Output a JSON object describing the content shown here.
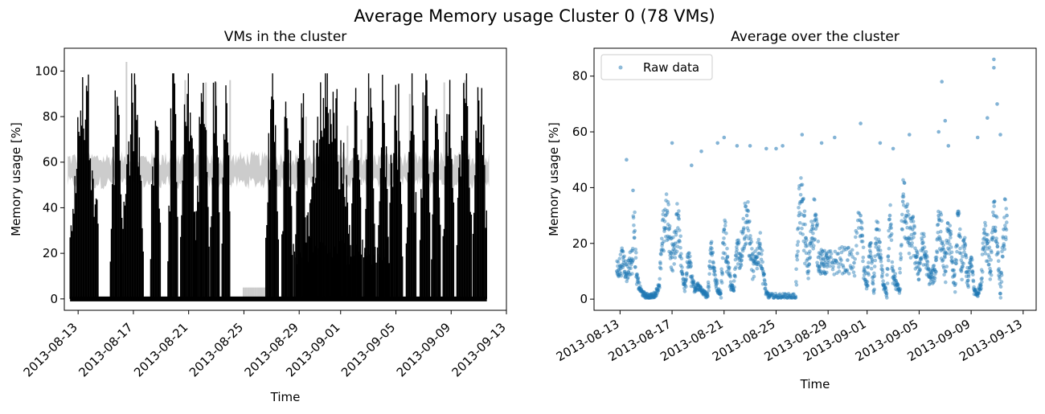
{
  "figure": {
    "title": "Average Memory usage Cluster 0 (78 VMs)"
  },
  "chart_data": [
    {
      "type": "line",
      "title": "VMs in the cluster",
      "xlabel": "Time",
      "ylabel": "Memory usage [%]",
      "x_ticks": [
        "2013-08-13",
        "2013-08-17",
        "2013-08-21",
        "2013-08-25",
        "2013-08-29",
        "2013-09-01",
        "2013-09-05",
        "2013-09-09",
        "2013-09-13"
      ],
      "y_ticks": [
        0,
        20,
        40,
        60,
        80,
        100
      ],
      "xlim": [
        "2013-08-12",
        "2013-09-13"
      ],
      "ylim": [
        -5,
        110
      ],
      "x_tick_rotation": 45,
      "series_colors": {
        "individual_vms": "#000000",
        "background_vms": "#cccccc"
      },
      "black_busy_periods": [
        [
          "2013-08-12T10",
          "2013-08-14T12"
        ],
        [
          "2013-08-15T08",
          "2013-08-16T06"
        ],
        [
          "2013-08-16T06",
          "2013-08-17T18"
        ],
        [
          "2013-08-18T06",
          "2013-08-19T00"
        ],
        [
          "2013-08-19T12",
          "2013-08-20T06"
        ],
        [
          "2013-08-20T10",
          "2013-08-21T12"
        ],
        [
          "2013-08-21T12",
          "2013-08-22T12"
        ],
        [
          "2013-08-22T14",
          "2013-08-23T06"
        ],
        [
          "2013-08-23T10",
          "2013-08-24T00"
        ],
        [
          "2013-08-26T14",
          "2013-08-27T12"
        ],
        [
          "2013-08-27T18",
          "2013-08-28T12"
        ],
        [
          "2013-08-28T18",
          "2013-08-29T12"
        ],
        [
          "2013-08-29T12",
          "2013-09-01T18"
        ],
        [
          "2013-09-01T18",
          "2013-09-02T12"
        ],
        [
          "2013-09-02T18",
          "2013-09-03T12"
        ],
        [
          "2013-09-03T18",
          "2013-09-04T12"
        ],
        [
          "2013-09-04T12",
          "2013-09-05T12"
        ],
        [
          "2013-09-05T18",
          "2013-09-06T12"
        ],
        [
          "2013-09-06T18",
          "2013-09-07T12"
        ],
        [
          "2013-09-07T14",
          "2013-09-08T06"
        ],
        [
          "2013-09-08T10",
          "2013-09-09T06"
        ],
        [
          "2013-09-09T10",
          "2013-09-10T12"
        ],
        [
          "2013-09-10T14",
          "2013-09-11T14"
        ]
      ]
    },
    {
      "type": "scatter",
      "title": "Average over the cluster",
      "xlabel": "Time",
      "ylabel": "Memory usage [%]",
      "legend": {
        "entries": [
          "Raw data"
        ],
        "placement": "top-left"
      },
      "x_ticks": [
        "2013-08-13",
        "2013-08-17",
        "2013-08-21",
        "2013-08-25",
        "2013-08-29",
        "2013-09-01",
        "2013-09-05",
        "2013-09-09",
        "2013-09-13"
      ],
      "y_ticks": [
        0,
        20,
        40,
        60,
        80
      ],
      "xlim": [
        "2013-08-11",
        "2013-09-14"
      ],
      "ylim": [
        -4,
        90
      ],
      "x_tick_rotation": 30,
      "marker_color": "#1f77b4",
      "series": [
        {
          "name": "Raw data",
          "points": [
            [
              "2013-08-12T18",
              10
            ],
            [
              "2013-08-13T00",
              12
            ],
            [
              "2013-08-13T06",
              15
            ],
            [
              "2013-08-13T12",
              9
            ],
            [
              "2013-08-13T18",
              13
            ],
            [
              "2013-08-14T00",
              14
            ],
            [
              "2013-08-14T06",
              8
            ],
            [
              "2013-08-14T12",
              4
            ],
            [
              "2013-08-14T18",
              2
            ],
            [
              "2013-08-15T00",
              1
            ],
            [
              "2013-08-15T06",
              1
            ],
            [
              "2013-08-15T12",
              1
            ],
            [
              "2013-08-15T18",
              2
            ],
            [
              "2013-08-16T00",
              5
            ],
            [
              "2013-08-16T06",
              20
            ],
            [
              "2013-08-16T12",
              30
            ],
            [
              "2013-08-16T18",
              25
            ],
            [
              "2013-08-17T00",
              15
            ],
            [
              "2013-08-17T06",
              20
            ],
            [
              "2013-08-17T12",
              30
            ],
            [
              "2013-08-17T18",
              10
            ],
            [
              "2013-08-18T00",
              5
            ],
            [
              "2013-08-18T06",
              15
            ],
            [
              "2013-08-18T12",
              8
            ],
            [
              "2013-08-18T18",
              3
            ],
            [
              "2013-08-19T00",
              5
            ],
            [
              "2013-08-19T06",
              3
            ],
            [
              "2013-08-19T12",
              2
            ],
            [
              "2013-08-19T18",
              1
            ],
            [
              "2013-08-20T00",
              20
            ],
            [
              "2013-08-20T06",
              10
            ],
            [
              "2013-08-20T12",
              3
            ],
            [
              "2013-08-20T18",
              2
            ],
            [
              "2013-08-21T00",
              25
            ],
            [
              "2013-08-21T06",
              15
            ],
            [
              "2013-08-21T12",
              5
            ],
            [
              "2013-08-21T18",
              3
            ],
            [
              "2013-08-22T00",
              20
            ],
            [
              "2013-08-22T06",
              15
            ],
            [
              "2013-08-22T12",
              25
            ],
            [
              "2013-08-22T18",
              30
            ],
            [
              "2013-08-23T00",
              20
            ],
            [
              "2013-08-23T06",
              10
            ],
            [
              "2013-08-23T12",
              15
            ],
            [
              "2013-08-23T18",
              20
            ],
            [
              "2013-08-24T00",
              10
            ],
            [
              "2013-08-24T06",
              2
            ],
            [
              "2013-08-24T12",
              1
            ],
            [
              "2013-08-25T00",
              1
            ],
            [
              "2013-08-25T12",
              1
            ],
            [
              "2013-08-26T00",
              1
            ],
            [
              "2013-08-26T12",
              1
            ],
            [
              "2013-08-26T18",
              30
            ],
            [
              "2013-08-27T00",
              35
            ],
            [
              "2013-08-27T06",
              20
            ],
            [
              "2013-08-27T12",
              10
            ],
            [
              "2013-08-27T18",
              25
            ],
            [
              "2013-08-28T00",
              30
            ],
            [
              "2013-08-28T06",
              15
            ],
            [
              "2013-08-28T12",
              13
            ],
            [
              "2013-08-28T18",
              13
            ],
            [
              "2013-08-29T00",
              13
            ],
            [
              "2013-08-29T12",
              13
            ],
            [
              "2013-08-30T00",
              14
            ],
            [
              "2013-08-30T12",
              14
            ],
            [
              "2013-08-31T00",
              13
            ],
            [
              "2013-08-31T12",
              30
            ],
            [
              "2013-08-31T18",
              10
            ],
            [
              "2013-09-01T00",
              5
            ],
            [
              "2013-09-01T06",
              20
            ],
            [
              "2013-09-01T12",
              3
            ],
            [
              "2013-09-01T18",
              25
            ],
            [
              "2013-09-02T00",
              15
            ],
            [
              "2013-09-02T06",
              5
            ],
            [
              "2013-09-02T12",
              2
            ],
            [
              "2013-09-02T18",
              30
            ],
            [
              "2013-09-03T00",
              10
            ],
            [
              "2013-09-03T06",
              5
            ],
            [
              "2013-09-03T12",
              3
            ],
            [
              "2013-09-03T18",
              35
            ],
            [
              "2013-09-04T00",
              30
            ],
            [
              "2013-09-04T06",
              20
            ],
            [
              "2013-09-04T12",
              25
            ],
            [
              "2013-09-04T18",
              15
            ],
            [
              "2013-09-05T00",
              10
            ],
            [
              "2013-09-05T06",
              20
            ],
            [
              "2013-09-05T12",
              15
            ],
            [
              "2013-09-05T18",
              8
            ],
            [
              "2013-09-06T00",
              8
            ],
            [
              "2013-09-06T06",
              10
            ],
            [
              "2013-09-06T12",
              30
            ],
            [
              "2013-09-06T18",
              20
            ],
            [
              "2013-09-07T00",
              10
            ],
            [
              "2013-09-07T06",
              25
            ],
            [
              "2013-09-07T12",
              15
            ],
            [
              "2013-09-07T18",
              5
            ],
            [
              "2013-09-08T00",
              30
            ],
            [
              "2013-09-08T06",
              10
            ],
            [
              "2013-09-08T12",
              20
            ],
            [
              "2013-09-08T18",
              5
            ],
            [
              "2013-09-09T00",
              15
            ],
            [
              "2013-09-09T06",
              3
            ],
            [
              "2013-09-09T12",
              2
            ],
            [
              "2013-09-09T18",
              5
            ],
            [
              "2013-09-10T00",
              25
            ],
            [
              "2013-09-10T06",
              20
            ],
            [
              "2013-09-10T12",
              10
            ],
            [
              "2013-09-10T18",
              30
            ],
            [
              "2013-09-11T00",
              20
            ],
            [
              "2013-09-11T06",
              2
            ],
            [
              "2013-09-11T12",
              25
            ],
            [
              "2013-09-11T18",
              30
            ],
            [
              "2013-08-13T12",
              50
            ],
            [
              "2013-08-14T00",
              39
            ],
            [
              "2013-08-17T00",
              56
            ],
            [
              "2013-08-18T12",
              48
            ],
            [
              "2013-08-19T06",
              53
            ],
            [
              "2013-08-20T12",
              56
            ],
            [
              "2013-08-21T00",
              58
            ],
            [
              "2013-08-22T00",
              55
            ],
            [
              "2013-08-23T00",
              55
            ],
            [
              "2013-08-24T06",
              54
            ],
            [
              "2013-08-25T00",
              54
            ],
            [
              "2013-08-25T12",
              55
            ],
            [
              "2013-08-27T00",
              59
            ],
            [
              "2013-08-28T12",
              56
            ],
            [
              "2013-08-29T12",
              58
            ],
            [
              "2013-08-31T12",
              63
            ],
            [
              "2013-09-02T00",
              56
            ],
            [
              "2013-09-03T00",
              54
            ],
            [
              "2013-09-04T06",
              59
            ],
            [
              "2013-09-06T12",
              60
            ],
            [
              "2013-09-06T18",
              78
            ],
            [
              "2013-09-07T00",
              64
            ],
            [
              "2013-09-07T06",
              55
            ],
            [
              "2013-09-09T12",
              58
            ],
            [
              "2013-09-10T06",
              65
            ],
            [
              "2013-09-10T18",
              86
            ],
            [
              "2013-09-10T18",
              83
            ],
            [
              "2013-09-11T00",
              70
            ],
            [
              "2013-09-11T06",
              59
            ]
          ]
        }
      ]
    }
  ]
}
